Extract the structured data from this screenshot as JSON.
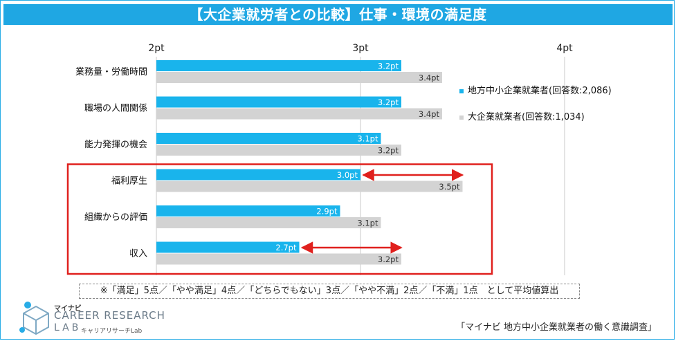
{
  "title": "【大企業就労者との比較】仕事・環境の満足度",
  "colors": {
    "accent": "#1fa7e3",
    "series_regional": "#19b4ec",
    "series_large": "#d3d3d3",
    "highlight": "#e0201d"
  },
  "chart_data": {
    "type": "bar",
    "orientation": "horizontal",
    "categories": [
      "業務量・労働時間",
      "職場の人間関係",
      "能力発揮の機会",
      "福利厚生",
      "組織からの評価",
      "収入"
    ],
    "series": [
      {
        "name": "地方中小企業就業者(回答数:2,086)",
        "color": "#19b4ec",
        "values": [
          3.2,
          3.2,
          3.1,
          3.0,
          2.9,
          2.7
        ],
        "labels": [
          "3.2pt",
          "3.2pt",
          "3.1pt",
          "3.0pt",
          "2.9pt",
          "2.7pt"
        ]
      },
      {
        "name": "大企業就業者(回答数:1,034)",
        "color": "#d3d3d3",
        "values": [
          3.4,
          3.4,
          3.2,
          3.5,
          3.1,
          3.2
        ],
        "labels": [
          "3.4pt",
          "3.4pt",
          "3.2pt",
          "3.5pt",
          "3.1pt",
          "3.2pt"
        ]
      }
    ],
    "xlim": [
      2,
      4
    ],
    "xticks": [
      2,
      3,
      4
    ],
    "xtick_labels": [
      "2pt",
      "3pt",
      "4pt"
    ],
    "legend_position": "right",
    "grid": true,
    "highlighted_categories": [
      "福利厚生",
      "組織からの評価",
      "収入"
    ],
    "gap_arrows": [
      {
        "category": "福利厚生",
        "from": 3.0,
        "to": 3.5
      },
      {
        "category": "収入",
        "from": 2.7,
        "to": 3.2
      }
    ]
  },
  "note": "※「満足」5点／「やや満足」4点／「どちらでもない」3点／「やや不満」2点／「不満」1点　として平均値算出",
  "logo": {
    "sub": "マイナビ",
    "main": "CAREER RESEARCH",
    "lab": "LAB",
    "kana": "キャリアリサーチLab"
  },
  "source": "「マイナビ 地方中小企業就業者の働く意識調査」"
}
